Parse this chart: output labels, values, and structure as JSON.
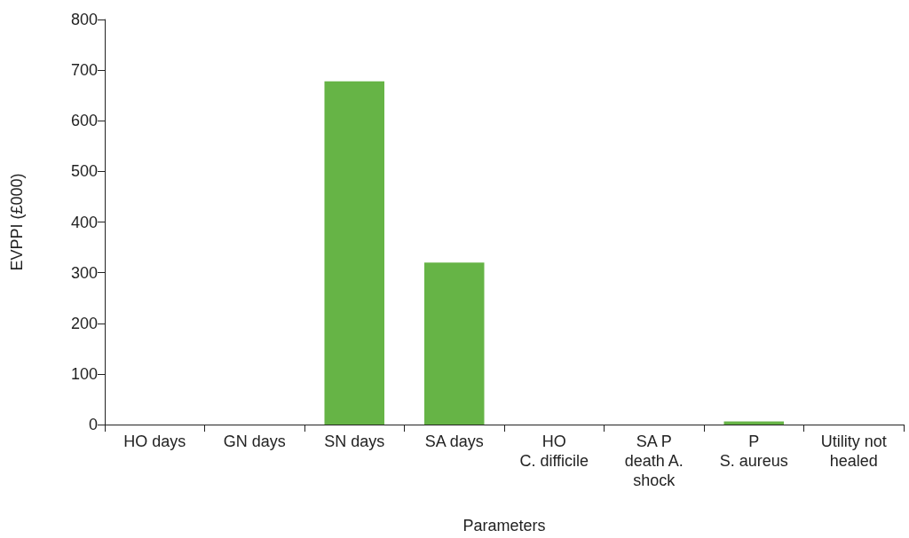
{
  "chart_data": {
    "type": "bar",
    "xlabel": "Parameters",
    "ylabel": "EVPPI (£000)",
    "categories": [
      "HO days",
      "GN days",
      "SN days",
      "SA days",
      "HO\nC. difficile",
      "SA P\ndeath A.\nshock",
      "P\nS. aureus",
      "Utility not\nhealed"
    ],
    "values": [
      0,
      0,
      678,
      320,
      0,
      0,
      6,
      0
    ],
    "color": "#66b446",
    "ylim": [
      0,
      800
    ],
    "yticks": [
      0,
      100,
      200,
      300,
      400,
      500,
      600,
      700,
      800
    ],
    "grid": false
  }
}
